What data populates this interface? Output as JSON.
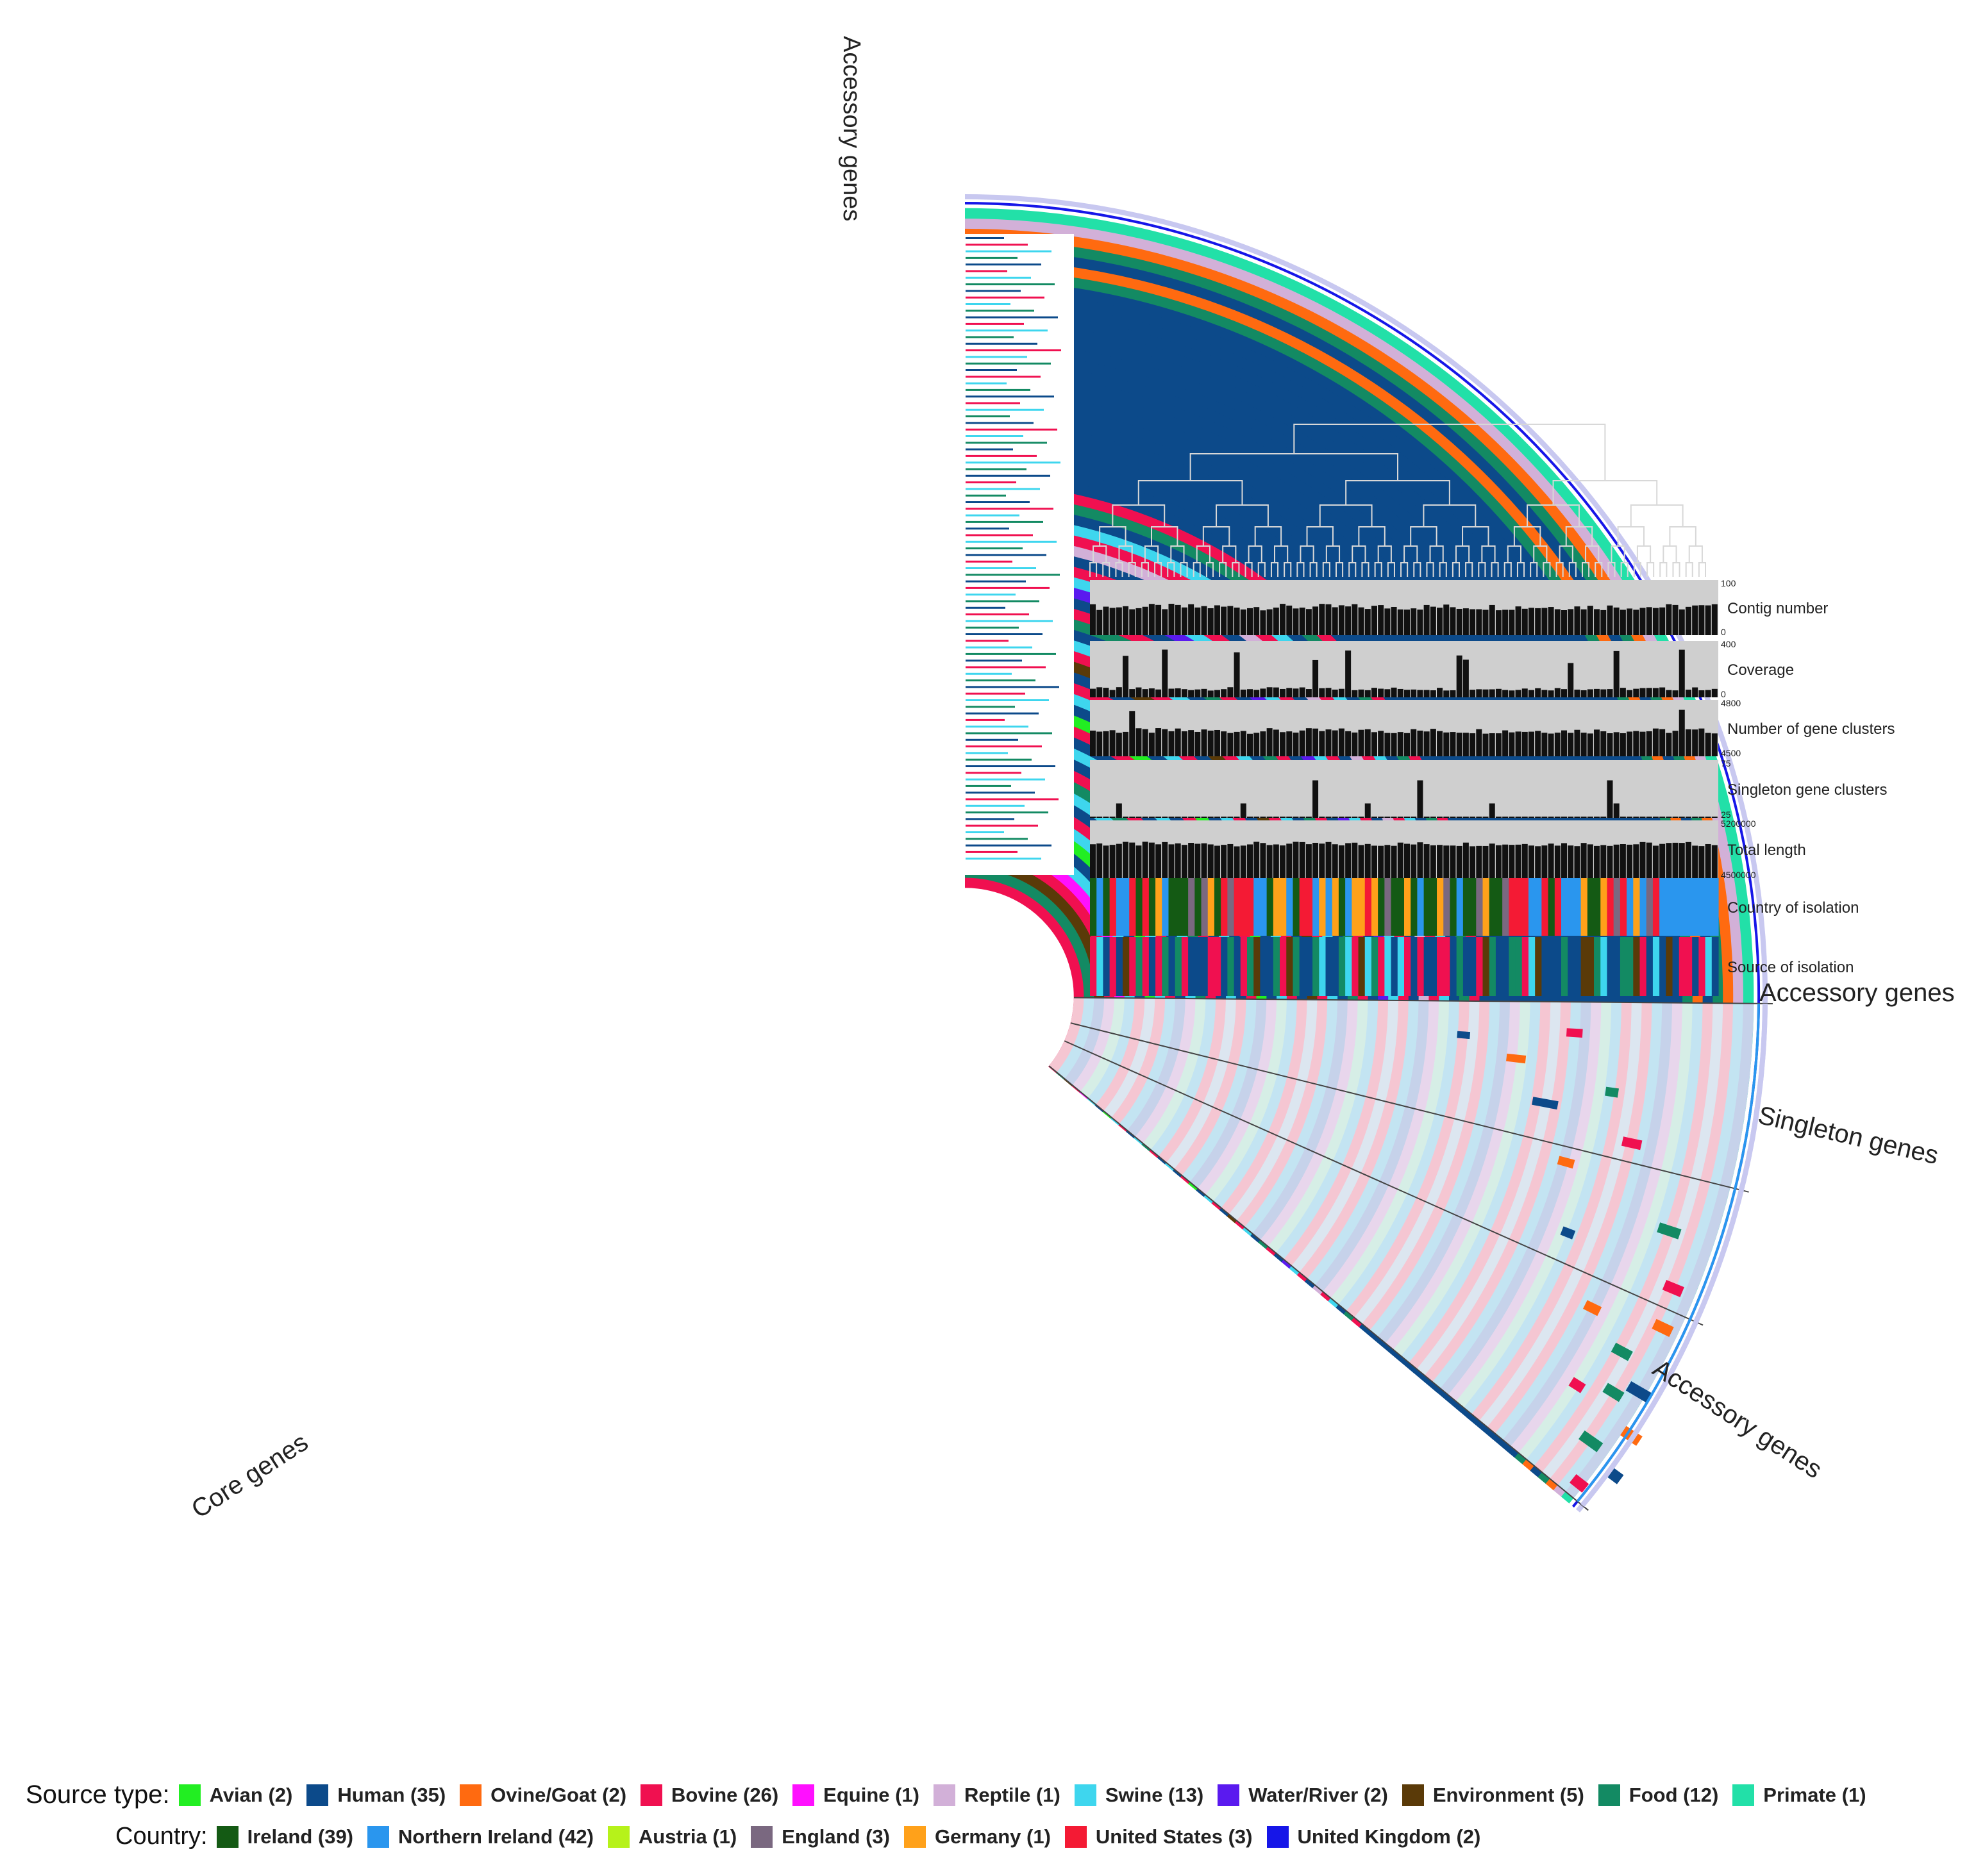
{
  "section_labels": {
    "accessory_top": "Accessory genes",
    "accessory_right": "Accessory genes",
    "singleton": "Singleton genes",
    "accessory_lower": "Accessory genes",
    "core": "Core genes"
  },
  "tracks": [
    {
      "label": "Contig number",
      "max": "100",
      "min": "0",
      "color": "#111111"
    },
    {
      "label": "Coverage",
      "max": "400",
      "min": "0",
      "color": "#111111"
    },
    {
      "label": "Number of gene clusters",
      "max": "4800",
      "min": "4500",
      "color": "#111111"
    },
    {
      "label": "Singleton gene clusters",
      "max": "75",
      "min": "25",
      "color": "#111111"
    },
    {
      "label": "Total length",
      "max": "5200000",
      "min": "4500000",
      "color": "#111111"
    },
    {
      "label": "Country of isolation",
      "max": "",
      "min": "",
      "color": ""
    },
    {
      "label": "Source of isolation",
      "max": "",
      "min": "",
      "color": ""
    }
  ],
  "legend": {
    "source_type": {
      "title": "Source type:",
      "items": [
        {
          "label": "Avian (2)",
          "color": "#22ee22"
        },
        {
          "label": "Human (35)",
          "color": "#0c4a8a"
        },
        {
          "label": "Ovine/Goat (2)",
          "color": "#ff6a10"
        },
        {
          "label": "Bovine (26)",
          "color": "#f01050"
        },
        {
          "label": "Equine (1)",
          "color": "#ff10ff"
        },
        {
          "label": "Reptile (1)",
          "color": "#d2b0d8"
        },
        {
          "label": "Swine (13)",
          "color": "#3ed6ee"
        },
        {
          "label": "Water/River (2)",
          "color": "#5a1aef"
        },
        {
          "label": "Environment (5)",
          "color": "#5a3a08"
        },
        {
          "label": "Food (12)",
          "color": "#138a63"
        },
        {
          "label": "Primate (1)",
          "color": "#22e0a8"
        }
      ]
    },
    "country": {
      "title": "Country:",
      "items": [
        {
          "label": "Ireland (39)",
          "color": "#145a14"
        },
        {
          "label": "Northern Ireland (42)",
          "color": "#2a96ee"
        },
        {
          "label": "Austria (1)",
          "color": "#b6f21a"
        },
        {
          "label": "England (3)",
          "color": "#7a6880"
        },
        {
          "label": "Germany (1)",
          "color": "#ffa11a"
        },
        {
          "label": "United States (3)",
          "color": "#f41a34"
        },
        {
          "label": "United Kingdom (2)",
          "color": "#1616e8"
        }
      ]
    }
  },
  "colors": {
    "track_background": "#cfcfcf",
    "bars": "#111111",
    "accessory_background": "#dbe4ee"
  }
}
